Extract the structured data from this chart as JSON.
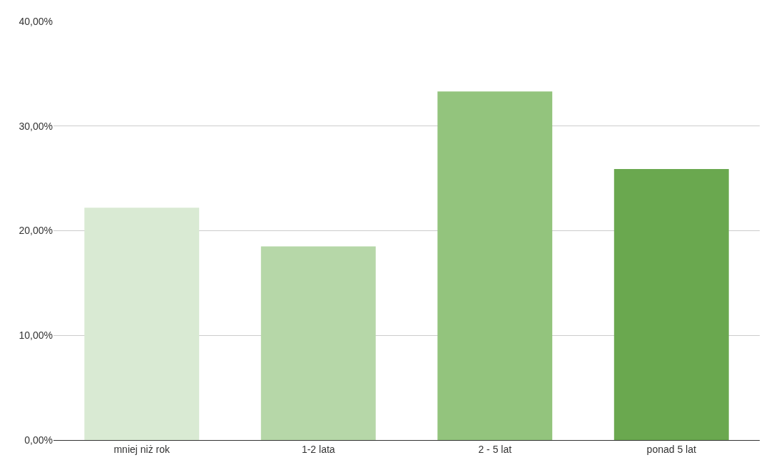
{
  "chart_data": {
    "type": "bar",
    "categories": [
      "mniej niż rok",
      "1-2 lata",
      "2 - 5 lat",
      "ponad 5 lat"
    ],
    "values": [
      22.2,
      18.5,
      33.3,
      25.9
    ],
    "colors": [
      "#d9ead3",
      "#b6d7a8",
      "#93c47d",
      "#6aa84f"
    ],
    "ylim": [
      0,
      40
    ],
    "yticks": [
      {
        "value": 0,
        "label": "0,00%"
      },
      {
        "value": 10,
        "label": "10,00%"
      },
      {
        "value": 20,
        "label": "20,00%"
      },
      {
        "value": 30,
        "label": "30,00%"
      },
      {
        "value": 40,
        "label": "40,00%"
      }
    ],
    "grid": "y"
  }
}
